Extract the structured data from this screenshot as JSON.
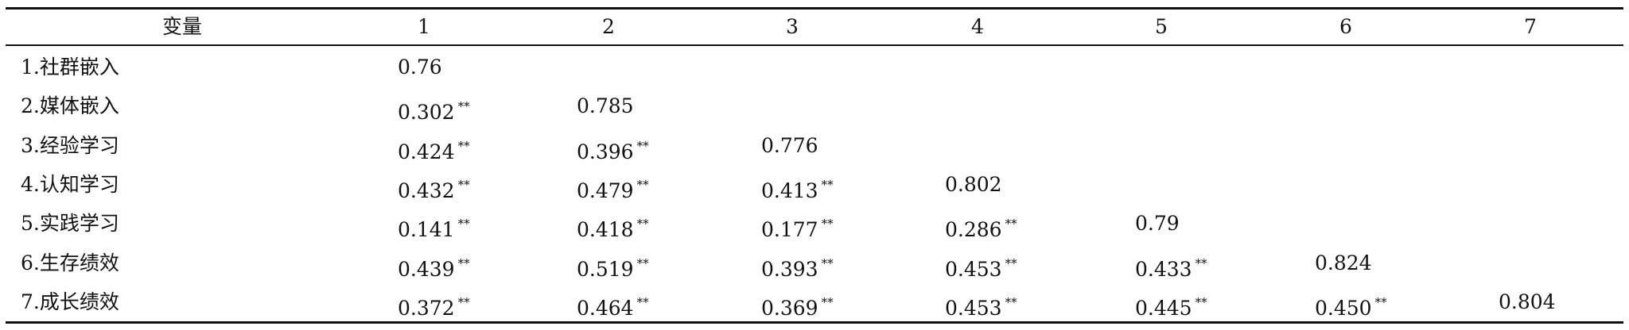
{
  "table": {
    "header": [
      "变量",
      "1",
      "2",
      "3",
      "4",
      "5",
      "6",
      "7"
    ],
    "rows": [
      {
        "label": "1.社群嵌入",
        "cells": [
          {
            "text": "0.76"
          }
        ]
      },
      {
        "label": "2.媒体嵌入",
        "cells": [
          {
            "text": "0.302",
            "mark": "**"
          },
          {
            "text": "0.785"
          }
        ]
      },
      {
        "label": "3.经验学习",
        "cells": [
          {
            "text": "0.424",
            "mark": "**"
          },
          {
            "text": "0.396",
            "mark": "**"
          },
          {
            "text": "0.776"
          }
        ]
      },
      {
        "label": "4.认知学习",
        "cells": [
          {
            "text": "0.432",
            "mark": "**"
          },
          {
            "text": "0.479",
            "mark": "**"
          },
          {
            "text": "0.413",
            "mark": "**"
          },
          {
            "text": "0.802"
          }
        ]
      },
      {
        "label": "5.实践学习",
        "cells": [
          {
            "text": "0.141",
            "mark": "**"
          },
          {
            "text": "0.418",
            "mark": "**"
          },
          {
            "text": "0.177",
            "mark": "**"
          },
          {
            "text": "0.286",
            "mark": "**"
          },
          {
            "text": "0.79"
          }
        ]
      },
      {
        "label": "6.生存绩效",
        "cells": [
          {
            "text": "0.439",
            "mark": "**"
          },
          {
            "text": "0.519",
            "mark": "**"
          },
          {
            "text": "0.393",
            "mark": "**"
          },
          {
            "text": "0.453",
            "mark": "**"
          },
          {
            "text": "0.433",
            "mark": "**"
          },
          {
            "text": "0.824"
          }
        ]
      },
      {
        "label": "7.成长绩效",
        "cells": [
          {
            "text": "0.372",
            "mark": "**"
          },
          {
            "text": "0.464",
            "mark": "**"
          },
          {
            "text": "0.369",
            "mark": "**"
          },
          {
            "text": "0.453",
            "mark": "**"
          },
          {
            "text": "0.445",
            "mark": "**"
          },
          {
            "text": "0.450",
            "mark": "**"
          },
          {
            "text": "0.804"
          }
        ]
      }
    ]
  }
}
